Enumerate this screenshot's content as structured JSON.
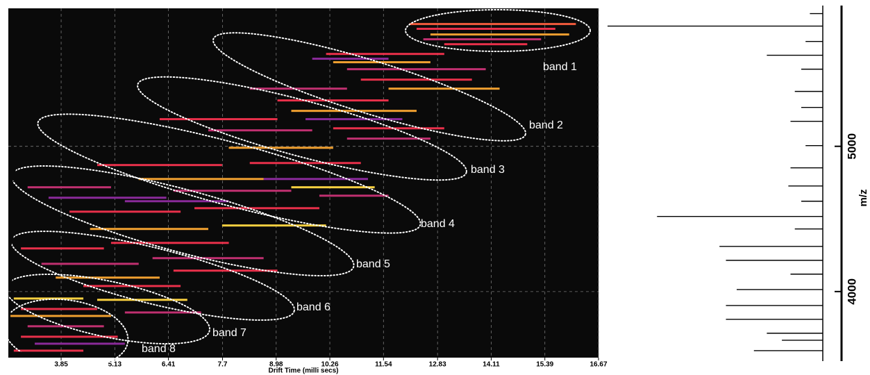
{
  "chart_data": [
    {
      "type": "heatmap",
      "xlabel": "Drift Time (milli secs)",
      "xlim": [
        2.59,
        16.67
      ],
      "xticks": [
        3.85,
        5.13,
        6.41,
        7.7,
        8.98,
        10.26,
        11.54,
        12.83,
        14.11,
        15.39,
        16.67
      ],
      "ylim": [
        3545,
        5950
      ],
      "grid": true,
      "background": "#0a0a0a",
      "drift_start": [
        12.16,
        12.33,
        12.66,
        12.49,
        12.99,
        10.17,
        10.34,
        10.67,
        11.0,
        11.66,
        9.84,
        8.35,
        9.01,
        9.34,
        9.68,
        10.34,
        10.67,
        6.2,
        7.36,
        7.85,
        8.35,
        8.68,
        9.34,
        10.01,
        4.71,
        5.7,
        6.53,
        7.03,
        7.69,
        5.37,
        3.05,
        4.05,
        4.54,
        5.04,
        6.03,
        6.53,
        3.55,
        2.89,
        3.38,
        3.72,
        4.38,
        4.71,
        5.37,
        2.72,
        2.89,
        2.64,
        3.05,
        2.89,
        3.22,
        2.72
      ],
      "drift_end": [
        16.13,
        15.64,
        15.97,
        15.3,
        14.97,
        12.99,
        12.66,
        13.98,
        13.65,
        14.31,
        11.66,
        10.67,
        11.66,
        12.33,
        11.99,
        12.99,
        12.66,
        9.01,
        9.84,
        10.34,
        11.0,
        11.17,
        11.33,
        11.66,
        7.69,
        8.68,
        9.34,
        10.01,
        10.17,
        7.85,
        5.04,
        6.7,
        7.36,
        7.85,
        8.68,
        9.01,
        6.36,
        4.87,
        5.7,
        6.2,
        6.7,
        6.86,
        7.19,
        4.38,
        4.71,
        5.04,
        4.87,
        5.2,
        5.37,
        4.38
      ],
      "mz": [
        5842,
        5809,
        5770,
        5737,
        5703,
        5636,
        5579,
        5531,
        5459,
        5397,
        5603,
        5397,
        5316,
        5244,
        5187,
        5124,
        5053,
        5187,
        5110,
        4990,
        4885,
        4775,
        4718,
        4660,
        4871,
        4775,
        4694,
        4574,
        4455,
        4622,
        4718,
        4550,
        4431,
        4335,
        4230,
        4144,
        4646,
        4297,
        4191,
        4096,
        4038,
        3943,
        3856,
        3952,
        3880,
        3832,
        3761,
        3689,
        3641,
        3593
      ],
      "colors": [
        "#f05a3c",
        "#e8304a",
        "#f0a030",
        "#c03070",
        "#e8304a",
        "#e8304a",
        "#f0a030",
        "#c03070",
        "#e8304a",
        "#f0a030",
        "#8a2a9a",
        "#c03070",
        "#e8304a",
        "#f0a030",
        "#8a2a9a",
        "#e8304a",
        "#c03070",
        "#e8304a",
        "#c03070",
        "#f0a030",
        "#e8304a",
        "#8a2a9a",
        "#f8d040",
        "#c03070",
        "#e8304a",
        "#f0a030",
        "#c03070",
        "#e8304a",
        "#f8d040",
        "#8a2a9a",
        "#c03070",
        "#e8304a",
        "#f0a030",
        "#e8304a",
        "#c03070",
        "#e8304a",
        "#8a2a9a",
        "#e8304a",
        "#c03070",
        "#f0a030",
        "#e8304a",
        "#f8d040",
        "#c03070",
        "#f8d040",
        "#e8304a",
        "#f0a030",
        "#c03070",
        "#e8304a",
        "#8a2a9a",
        "#e8304a"
      ],
      "bands": [
        "band 1",
        "band 2",
        "band 3",
        "band 4",
        "band 5",
        "band 6",
        "band 7",
        "band 8"
      ]
    },
    {
      "type": "spectrum",
      "ylabel": "m/z",
      "ylim": [
        3545,
        5950
      ],
      "yticks": [
        4000,
        5000
      ],
      "xlim": [
        0,
        100
      ],
      "color": "#000000",
      "mz": [
        5828,
        5627,
        5378,
        5172,
        4852,
        4727,
        4517,
        4431,
        4311,
        4215,
        4014,
        3904,
        3809,
        3713,
        3593,
        5914,
        5722,
        5531,
        5268,
        5005,
        4622,
        4120,
        3665
      ],
      "intensity": [
        100,
        26,
        13,
        15,
        15,
        16,
        77,
        13,
        48,
        45,
        40,
        45,
        45,
        26,
        32,
        6,
        8,
        10,
        10,
        8,
        10,
        15,
        19
      ]
    }
  ]
}
